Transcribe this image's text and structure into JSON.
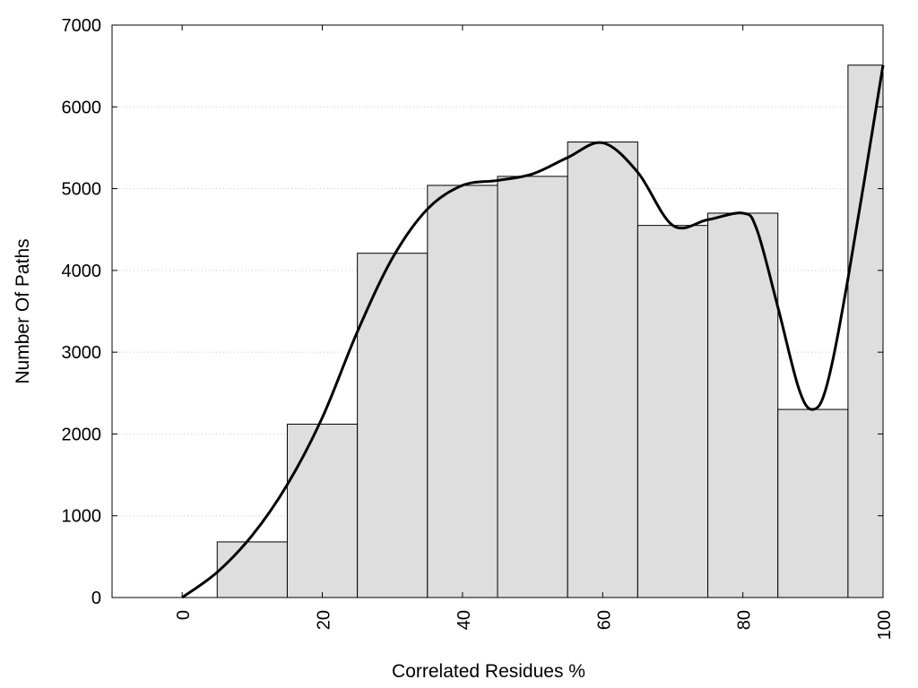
{
  "chart_data": {
    "type": "bar",
    "xlabel": "Correlated Residues %",
    "ylabel": "Number Of Paths",
    "xlim": [
      -10,
      100
    ],
    "ylim": [
      0,
      7000
    ],
    "x_ticks": [
      0,
      20,
      40,
      60,
      80,
      100
    ],
    "y_ticks": [
      0,
      1000,
      2000,
      3000,
      4000,
      5000,
      6000,
      7000
    ],
    "grid": {
      "y": true,
      "x": false,
      "style": "dotted"
    },
    "bar_color": "#dedede",
    "bar_edge_color": "#000000",
    "bars": [
      {
        "start": 5,
        "end": 15,
        "value": 680
      },
      {
        "start": 15,
        "end": 25,
        "value": 2120
      },
      {
        "start": 25,
        "end": 35,
        "value": 4210
      },
      {
        "start": 35,
        "end": 45,
        "value": 5040
      },
      {
        "start": 45,
        "end": 55,
        "value": 5150
      },
      {
        "start": 55,
        "end": 65,
        "value": 5570
      },
      {
        "start": 65,
        "end": 75,
        "value": 4550
      },
      {
        "start": 75,
        "end": 85,
        "value": 4700
      },
      {
        "start": 85,
        "end": 95,
        "value": 2300
      },
      {
        "start": 95,
        "end": 100,
        "value": 6510
      }
    ],
    "curve": {
      "color": "#000000",
      "points": [
        [
          0,
          0
        ],
        [
          5,
          310
        ],
        [
          10,
          760
        ],
        [
          15,
          1380
        ],
        [
          20,
          2200
        ],
        [
          25,
          3250
        ],
        [
          30,
          4150
        ],
        [
          35,
          4750
        ],
        [
          40,
          5040
        ],
        [
          45,
          5100
        ],
        [
          50,
          5180
        ],
        [
          55,
          5380
        ],
        [
          60,
          5560
        ],
        [
          65,
          5200
        ],
        [
          70,
          4550
        ],
        [
          75,
          4620
        ],
        [
          80,
          4700
        ],
        [
          82,
          4500
        ],
        [
          85,
          3550
        ],
        [
          88,
          2550
        ],
        [
          90,
          2300
        ],
        [
          92,
          2600
        ],
        [
          95,
          3900
        ],
        [
          100,
          6510
        ]
      ]
    }
  }
}
